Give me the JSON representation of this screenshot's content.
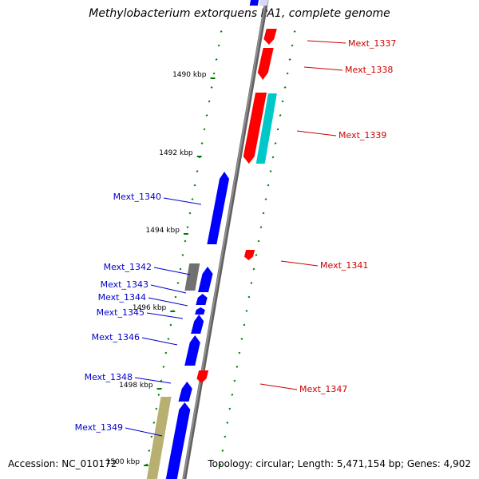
{
  "title": "Methylobacterium extorquens PA1, complete genome",
  "footer": {
    "accession": "Accession: NC_010172",
    "summary": "Topology: circular; Length: 5,471,154 bp; Genes: 4,902"
  },
  "colors": {
    "forward_gene": "#0000ff",
    "reverse_gene": "#ff0000",
    "rna_gene": "#00c8c8",
    "grey_feature": "#707070",
    "olive_feature": "#b8b070",
    "tick": "#008000",
    "backbone": "#909090",
    "forward_label": "#0000cc",
    "reverse_label": "#cc0000"
  },
  "scale_labels": [
    "1490 kbp",
    "1492 kbp",
    "1494 kbp",
    "1496 kbp",
    "1498 kbp",
    "1500 kbp"
  ],
  "gene_labels": [
    {
      "text": "Mext_1337",
      "strand": "reverse"
    },
    {
      "text": "Mext_1338",
      "strand": "reverse"
    },
    {
      "text": "Mext_1339",
      "strand": "reverse"
    },
    {
      "text": "Mext_1340",
      "strand": "forward"
    },
    {
      "text": "Mext_1341",
      "strand": "reverse"
    },
    {
      "text": "Mext_1342",
      "strand": "forward"
    },
    {
      "text": "Mext_1343",
      "strand": "forward"
    },
    {
      "text": "Mext_1344",
      "strand": "forward"
    },
    {
      "text": "Mext_1345",
      "strand": "forward"
    },
    {
      "text": "Mext_1346",
      "strand": "forward"
    },
    {
      "text": "Mext_1347",
      "strand": "reverse"
    },
    {
      "text": "Mext_1348",
      "strand": "forward"
    },
    {
      "text": "Mext_1349",
      "strand": "forward"
    }
  ]
}
